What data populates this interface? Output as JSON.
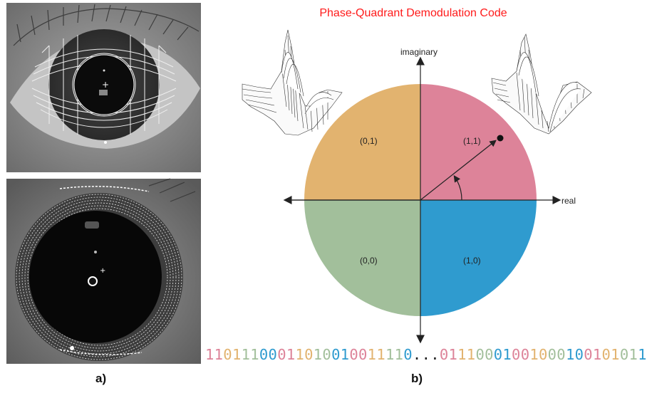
{
  "title": "Phase-Quadrant Demodulation Code",
  "panel_labels": {
    "left": "a)",
    "right": "b)"
  },
  "axes": {
    "x_label": "real",
    "y_label": "imaginary"
  },
  "quadrants": {
    "upper_left": {
      "label": "(0,1)",
      "color": "#e2b36f"
    },
    "upper_right": {
      "label": "(1,1)",
      "color": "#dd8399"
    },
    "lower_left": {
      "label": "(0,0)",
      "color": "#a2bf9b"
    },
    "lower_right": {
      "label": "(1,0)",
      "color": "#2f9bcf"
    }
  },
  "bitstring": {
    "prefix": "11011100011010010011110",
    "ellipsis": "...",
    "suffix": "01110001001000100101011"
  },
  "bit_colors": [
    "#dd8399",
    "#e2b36f",
    "#a2bf9b",
    "#2f9bcf"
  ]
}
